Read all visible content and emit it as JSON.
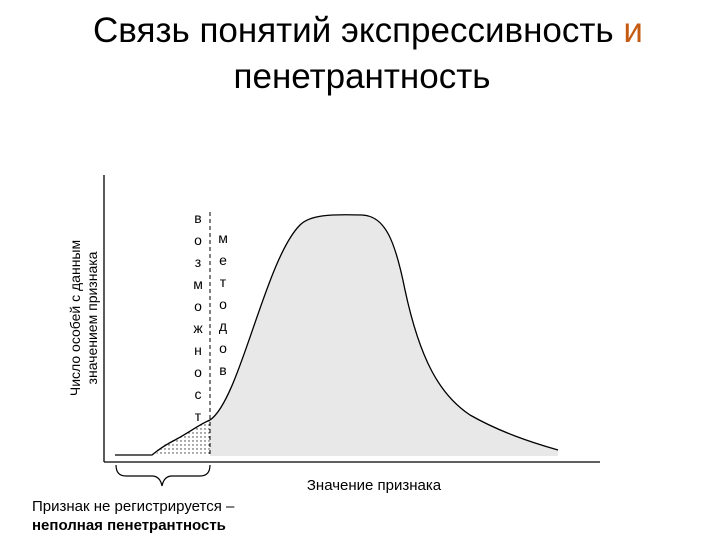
{
  "title": {
    "line1": "Связь понятий экспрессивность",
    "highlight": "и",
    "line2": "пенетрантность"
  },
  "y_axis_label": {
    "line1": "Число особей с данным",
    "line2": "значением признака"
  },
  "vertical_words": [
    "возможност",
    "методов"
  ],
  "x_axis_label": "Значение признака",
  "note": {
    "line1": "Признак не регистрируется –",
    "line2": "неполная пенетрантность"
  }
}
